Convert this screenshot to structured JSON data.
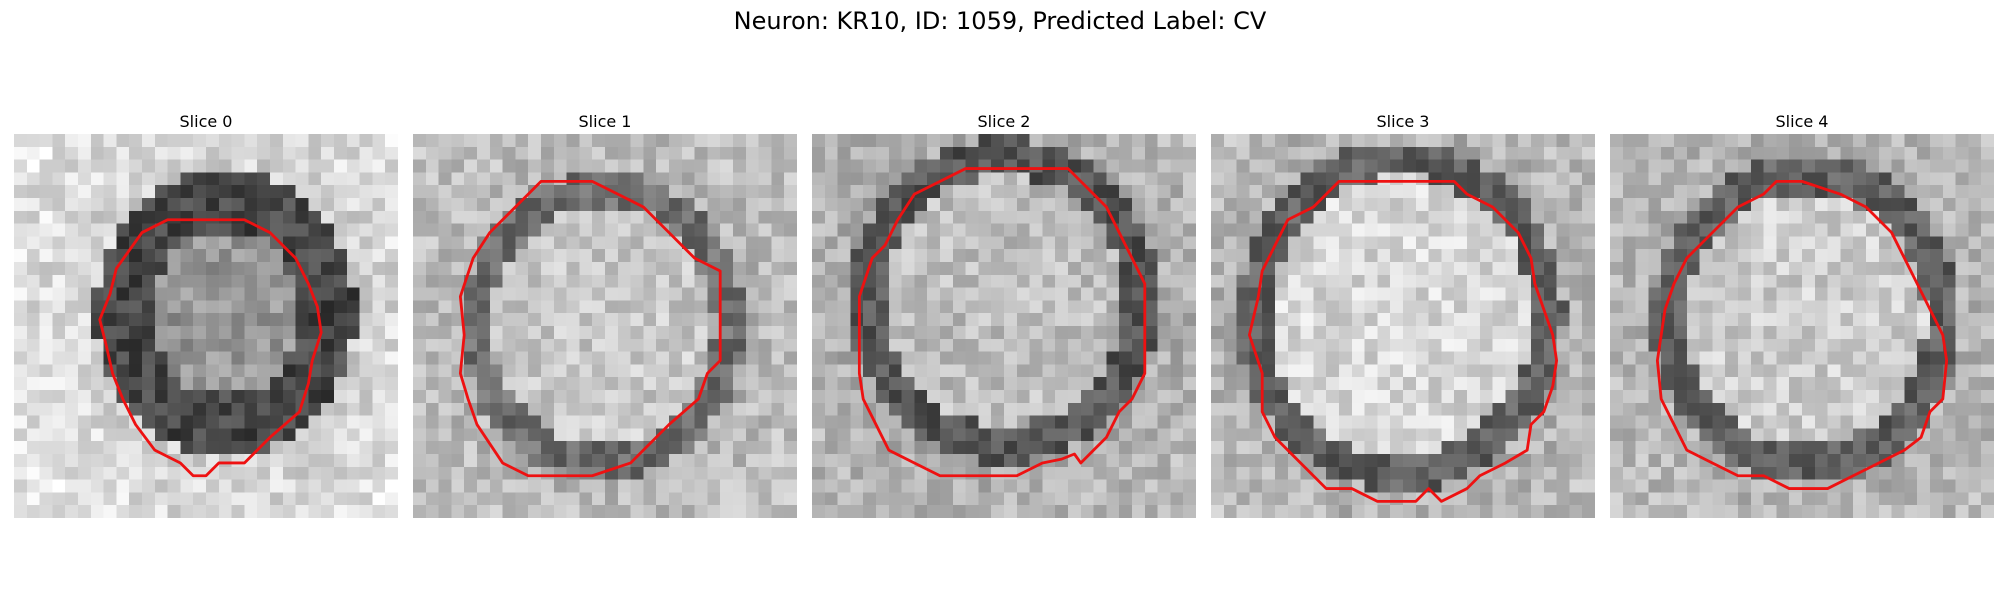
{
  "figure": {
    "title": "Neuron: KR10, ID: 1059, Predicted Label: CV"
  },
  "panels": [
    {
      "title": "Slice 0"
    },
    {
      "title": "Slice 1"
    },
    {
      "title": "Slice 2"
    },
    {
      "title": "Slice 3"
    },
    {
      "title": "Slice 4"
    }
  ],
  "colors": {
    "contour": "#ee1111",
    "background": "#ffffff",
    "text": "#000000"
  }
}
